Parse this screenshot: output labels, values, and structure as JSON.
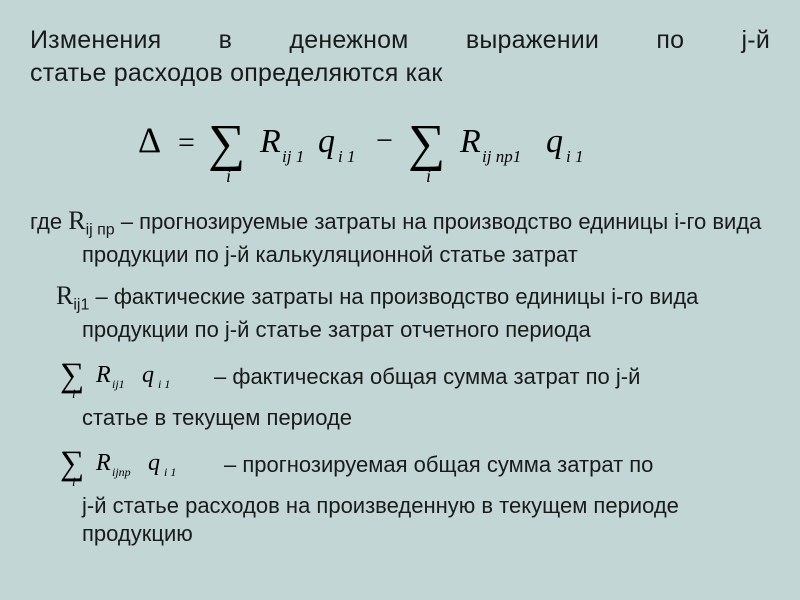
{
  "colors": {
    "background": "#c2d6d6",
    "text": "#1a1a1a",
    "formula": "#000000"
  },
  "typography": {
    "title_fontsize": 25,
    "body_fontsize": 22,
    "formula_font": "Times New Roman, serif",
    "body_font": "Arial, sans-serif"
  },
  "title": {
    "line1": "Изменения в денежном выражении по j-й",
    "line2": "статье расходов определяются как"
  },
  "main_formula": {
    "lhs": "Δ",
    "eq": "=",
    "term1": {
      "sigma_index": "i",
      "factor1": "R",
      "factor1_sub": "ij 1",
      "factor2": "q",
      "factor2_sub": "i 1"
    },
    "minus": "−",
    "term2": {
      "sigma_index": "i",
      "factor1": "R",
      "factor1_sub": "ij np1",
      "factor2": "q",
      "factor2_sub": "i 1"
    }
  },
  "defs": {
    "lead": "где ",
    "d1_sym": "R",
    "d1_sub": "ij пр",
    "d1_text": " – прогнозируемые затраты на производство единицы i-го вида продукции по j-й калькуляционной статье затрат",
    "d2_sym": "R",
    "d2_sub": "ij1",
    "d2_text": " – фактические затраты на производство единицы i-го вида продукции по j-й статье затрат отчетного периода",
    "d3_sum": {
      "index": "i",
      "f1": "R",
      "f1_sub": "ij1",
      "f2": "q",
      "f2_sub": "i 1"
    },
    "d3_text_a": " – фактическая общая сумма затрат по j-й",
    "d3_text_b": "статье в текущем периоде",
    "d4_sum": {
      "index": "i",
      "f1": "R",
      "f1_sub": "ijпр",
      "f2": "q",
      "f2_sub": "i 1"
    },
    "d4_text_a": " – прогнозируемая общая сумма затрат по",
    "d4_text_b": "j-й статье расходов на произведенную в текущем периоде продукцию"
  }
}
